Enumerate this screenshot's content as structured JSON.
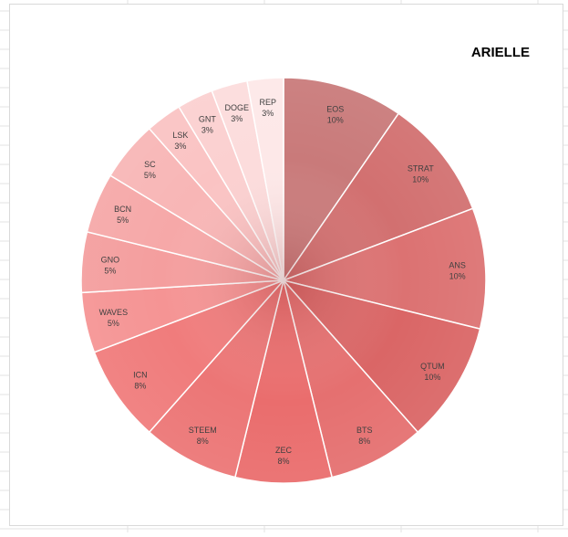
{
  "chart_data": {
    "type": "pie",
    "title": "ARIELLE",
    "start": "12 o'clock",
    "direction": "clockwise",
    "legend": "none",
    "base_color": "#e06666",
    "categories": [
      "EOS",
      "STRAT",
      "ANS",
      "QTUM",
      "BTS",
      "ZEC",
      "STEEM",
      "ICN",
      "WAVES",
      "GNO",
      "BCN",
      "SC",
      "LSK",
      "GNT",
      "DOGE",
      "REP"
    ],
    "values": [
      10,
      10,
      10,
      10,
      8,
      8,
      8,
      8,
      5,
      5,
      5,
      5,
      3,
      3,
      3,
      3
    ],
    "labels": [
      "10%",
      "10%",
      "10%",
      "10%",
      "8%",
      "8%",
      "8%",
      "8%",
      "5%",
      "5%",
      "5%",
      "5%",
      "3%",
      "3%",
      "3%",
      "3%"
    ],
    "colors": [
      "#c97a7a",
      "#d27070",
      "#dc7272",
      "#da6666",
      "#e57070",
      "#ea6d6d",
      "#ec7676",
      "#f07c7c",
      "#f59494",
      "#f49e9e",
      "#f6a8a8",
      "#f8b6b6",
      "#fac3c3",
      "#fbd0d0",
      "#fcdcdc",
      "#fde8e8"
    ]
  }
}
